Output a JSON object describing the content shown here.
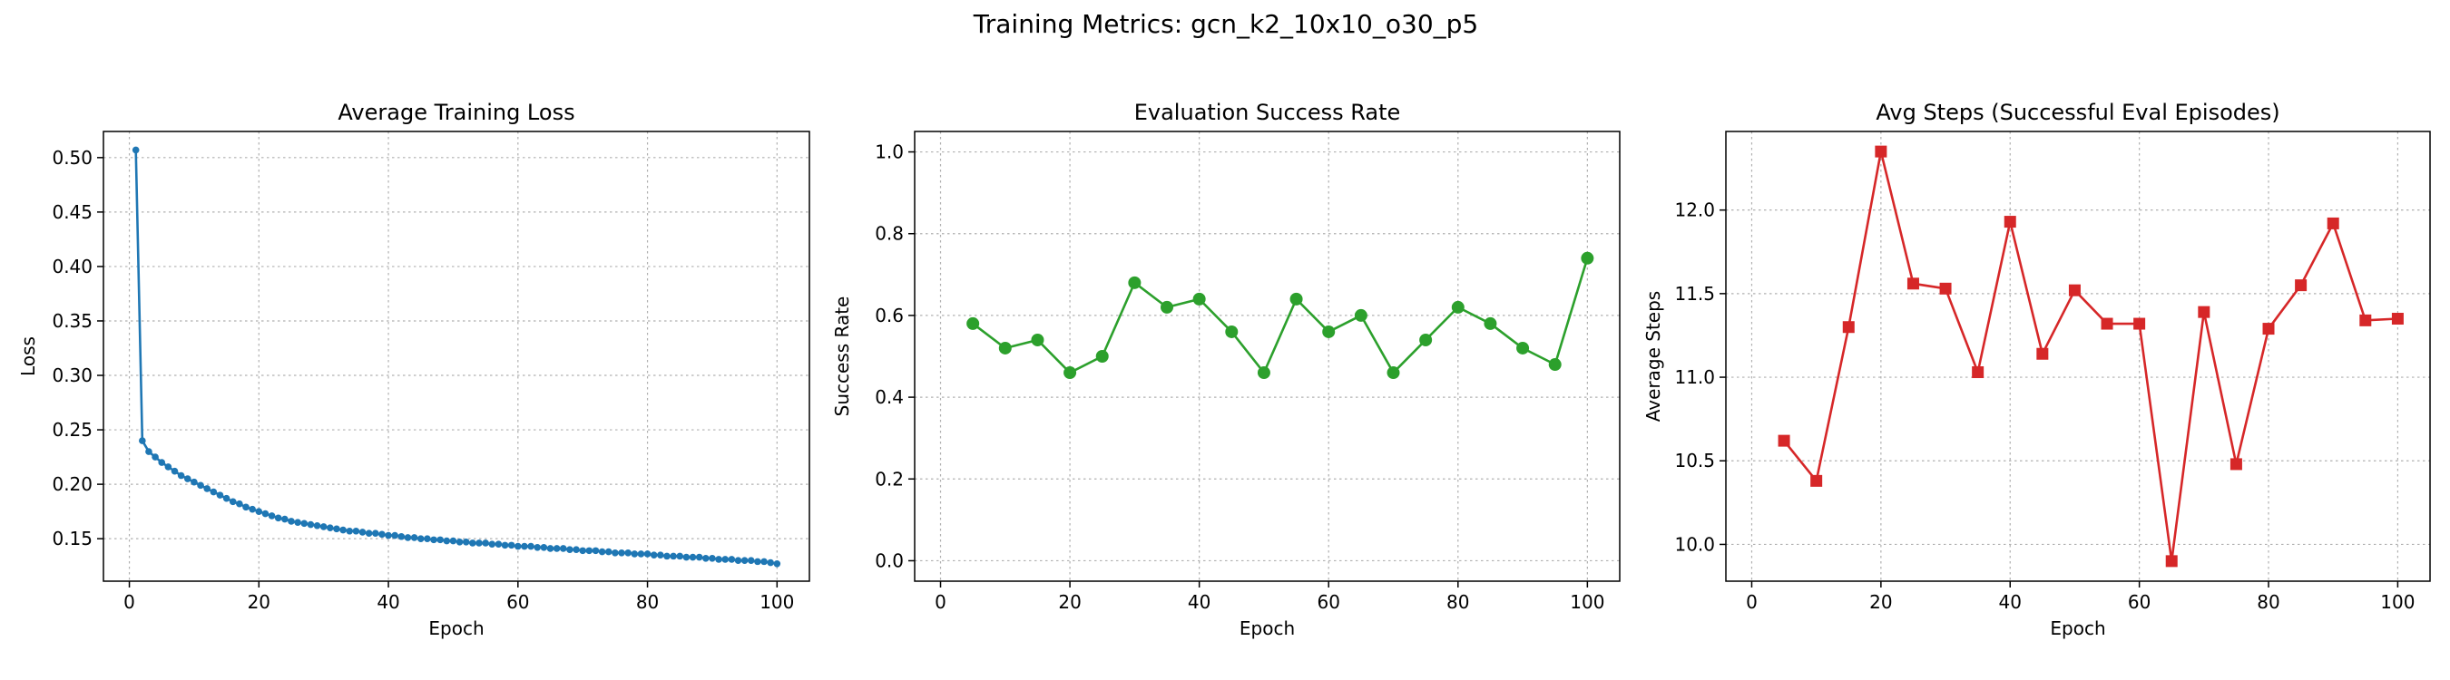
{
  "suptitle": "Training Metrics: gcn_k2_10x10_o30_p5",
  "colors": {
    "loss": "#1f77b4",
    "success": "#2ca02c",
    "steps": "#d62728"
  },
  "chart_data": [
    {
      "type": "line",
      "title": "Average Training Loss",
      "xlabel": "Epoch",
      "ylabel": "Loss",
      "xlim": [
        -4,
        105
      ],
      "ylim": [
        0.111,
        0.524
      ],
      "xticks": [
        0,
        20,
        40,
        60,
        80,
        100
      ],
      "xtick_labels": [
        "0",
        "20",
        "40",
        "60",
        "80",
        "100"
      ],
      "yticks": [
        0.15,
        0.2,
        0.25,
        0.3,
        0.35,
        0.4,
        0.45,
        0.5
      ],
      "ytick_labels": [
        "0.15",
        "0.20",
        "0.25",
        "0.30",
        "0.35",
        "0.40",
        "0.45",
        "0.50"
      ],
      "grid": true,
      "marker": "circle",
      "series": [
        {
          "x": [
            1,
            2,
            3,
            4,
            5,
            6,
            7,
            8,
            9,
            10,
            11,
            12,
            13,
            14,
            15,
            16,
            17,
            18,
            19,
            20,
            21,
            22,
            23,
            24,
            25,
            26,
            27,
            28,
            29,
            30,
            31,
            32,
            33,
            34,
            35,
            36,
            37,
            38,
            39,
            40,
            41,
            42,
            43,
            44,
            45,
            46,
            47,
            48,
            49,
            50,
            51,
            52,
            53,
            54,
            55,
            56,
            57,
            58,
            59,
            60,
            61,
            62,
            63,
            64,
            65,
            66,
            67,
            68,
            69,
            70,
            71,
            72,
            73,
            74,
            75,
            76,
            77,
            78,
            79,
            80,
            81,
            82,
            83,
            84,
            85,
            86,
            87,
            88,
            89,
            90,
            91,
            92,
            93,
            94,
            95,
            96,
            97,
            98,
            99,
            100
          ],
          "y": [
            0.507,
            0.24,
            0.23,
            0.225,
            0.22,
            0.216,
            0.212,
            0.208,
            0.205,
            0.202,
            0.199,
            0.196,
            0.193,
            0.19,
            0.187,
            0.184,
            0.182,
            0.179,
            0.177,
            0.175,
            0.173,
            0.171,
            0.169,
            0.168,
            0.166,
            0.165,
            0.164,
            0.163,
            0.162,
            0.161,
            0.16,
            0.159,
            0.158,
            0.157,
            0.157,
            0.156,
            0.155,
            0.155,
            0.154,
            0.153,
            0.153,
            0.152,
            0.151,
            0.151,
            0.15,
            0.15,
            0.149,
            0.149,
            0.148,
            0.148,
            0.147,
            0.147,
            0.146,
            0.146,
            0.146,
            0.145,
            0.145,
            0.144,
            0.144,
            0.143,
            0.143,
            0.143,
            0.142,
            0.142,
            0.141,
            0.141,
            0.141,
            0.14,
            0.14,
            0.139,
            0.139,
            0.139,
            0.138,
            0.138,
            0.137,
            0.137,
            0.137,
            0.136,
            0.136,
            0.136,
            0.135,
            0.135,
            0.134,
            0.134,
            0.134,
            0.133,
            0.133,
            0.133,
            0.132,
            0.132,
            0.131,
            0.131,
            0.131,
            0.13,
            0.13,
            0.13,
            0.129,
            0.129,
            0.128,
            0.127
          ]
        }
      ]
    },
    {
      "type": "line",
      "title": "Evaluation Success Rate",
      "xlabel": "Epoch",
      "ylabel": "Success Rate",
      "xlim": [
        -4,
        105
      ],
      "ylim": [
        -0.05,
        1.05
      ],
      "xticks": [
        0,
        20,
        40,
        60,
        80,
        100
      ],
      "xtick_labels": [
        "0",
        "20",
        "40",
        "60",
        "80",
        "100"
      ],
      "yticks": [
        0.0,
        0.2,
        0.4,
        0.6,
        0.8,
        1.0
      ],
      "ytick_labels": [
        "0.0",
        "0.2",
        "0.4",
        "0.6",
        "0.8",
        "1.0"
      ],
      "grid": true,
      "marker": "circle",
      "series": [
        {
          "x": [
            5,
            10,
            15,
            20,
            25,
            30,
            35,
            40,
            45,
            50,
            55,
            60,
            65,
            70,
            75,
            80,
            85,
            90,
            95,
            100
          ],
          "y": [
            0.58,
            0.52,
            0.54,
            0.46,
            0.5,
            0.68,
            0.62,
            0.64,
            0.56,
            0.46,
            0.64,
            0.56,
            0.6,
            0.46,
            0.54,
            0.62,
            0.58,
            0.52,
            0.48,
            0.74
          ]
        }
      ]
    },
    {
      "type": "line",
      "title": "Avg Steps (Successful Eval Episodes)",
      "xlabel": "Epoch",
      "ylabel": "Average Steps",
      "xlim": [
        -4,
        105
      ],
      "ylim": [
        9.78,
        12.47
      ],
      "xticks": [
        0,
        20,
        40,
        60,
        80,
        100
      ],
      "xtick_labels": [
        "0",
        "20",
        "40",
        "60",
        "80",
        "100"
      ],
      "yticks": [
        10.0,
        10.5,
        11.0,
        11.5,
        12.0
      ],
      "ytick_labels": [
        "10.0",
        "10.5",
        "11.0",
        "11.5",
        "12.0"
      ],
      "grid": true,
      "marker": "square",
      "series": [
        {
          "x": [
            5,
            10,
            15,
            20,
            25,
            30,
            35,
            40,
            45,
            50,
            55,
            60,
            65,
            70,
            75,
            80,
            85,
            90,
            95,
            100
          ],
          "y": [
            10.62,
            10.38,
            11.3,
            12.35,
            11.56,
            11.53,
            11.03,
            11.93,
            11.14,
            11.52,
            11.32,
            11.32,
            9.9,
            11.39,
            10.48,
            11.29,
            11.55,
            11.92,
            11.34,
            11.35
          ]
        }
      ]
    }
  ]
}
